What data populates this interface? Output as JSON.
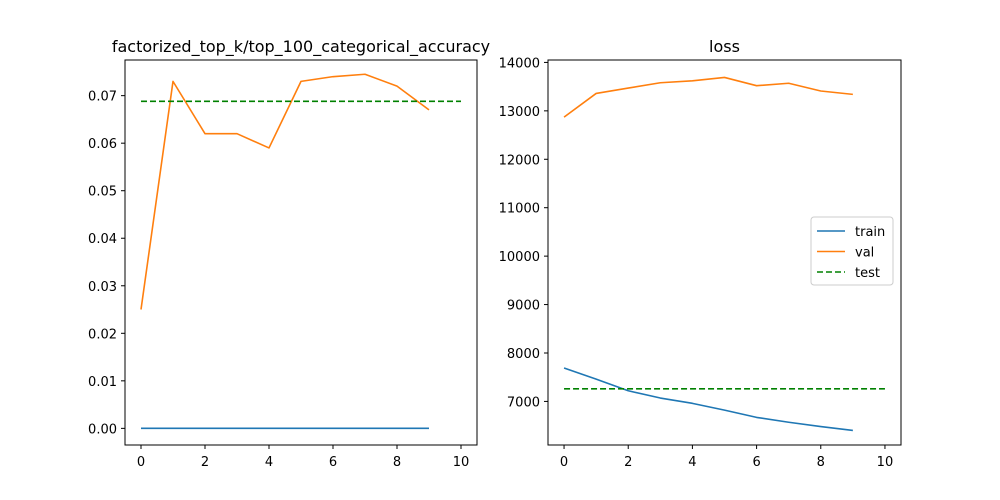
{
  "chart_data": [
    {
      "type": "line",
      "title": "factorized_top_k/top_100_categorical_accuracy",
      "xlabel": "",
      "ylabel": "",
      "xlim": [
        -0.5,
        10.5
      ],
      "ylim": [
        -0.0035,
        0.0775
      ],
      "xticks": [
        0,
        2,
        4,
        6,
        8,
        10
      ],
      "xtick_labels": [
        "0",
        "2",
        "4",
        "6",
        "8",
        "10"
      ],
      "yticks": [
        0.0,
        0.01,
        0.02,
        0.03,
        0.04,
        0.05,
        0.06,
        0.07
      ],
      "ytick_labels": [
        "0.00",
        "0.01",
        "0.02",
        "0.03",
        "0.04",
        "0.05",
        "0.06",
        "0.07"
      ],
      "grid": false,
      "series": [
        {
          "name": "train",
          "color": "#1f77b4",
          "dash": "solid",
          "x": [
            0,
            1,
            2,
            3,
            4,
            5,
            6,
            7,
            8,
            9
          ],
          "y": [
            0,
            0,
            0,
            0,
            0,
            0,
            0,
            0,
            0,
            0
          ]
        },
        {
          "name": "val",
          "color": "#ff7f0e",
          "dash": "solid",
          "x": [
            0,
            1,
            2,
            3,
            4,
            5,
            6,
            7,
            8,
            9
          ],
          "y": [
            0.025,
            0.073,
            0.062,
            0.062,
            0.059,
            0.073,
            0.074,
            0.0745,
            0.072,
            0.067
          ]
        },
        {
          "name": "test",
          "color": "#008000",
          "dash": "dashed",
          "x": [
            0,
            10
          ],
          "y": [
            0.0688,
            0.0688
          ]
        }
      ]
    },
    {
      "type": "line",
      "title": "loss",
      "xlabel": "",
      "ylabel": "",
      "xlim": [
        -0.5,
        10.5
      ],
      "ylim": [
        6100,
        14050
      ],
      "xticks": [
        0,
        2,
        4,
        6,
        8,
        10
      ],
      "xtick_labels": [
        "0",
        "2",
        "4",
        "6",
        "8",
        "10"
      ],
      "yticks": [
        7000,
        8000,
        9000,
        10000,
        11000,
        12000,
        13000,
        14000
      ],
      "ytick_labels": [
        "7000",
        "8000",
        "9000",
        "10000",
        "11000",
        "12000",
        "13000",
        "14000"
      ],
      "grid": false,
      "legend": {
        "position": "center-right",
        "entries": [
          {
            "label": "train",
            "color": "#1f77b4",
            "dash": "solid"
          },
          {
            "label": "val",
            "color": "#ff7f0e",
            "dash": "solid"
          },
          {
            "label": "test",
            "color": "#008000",
            "dash": "dashed"
          }
        ]
      },
      "series": [
        {
          "name": "train",
          "color": "#1f77b4",
          "dash": "solid",
          "x": [
            0,
            1,
            2,
            3,
            4,
            5,
            6,
            7,
            8,
            9
          ],
          "y": [
            7690,
            7460,
            7220,
            7070,
            6960,
            6820,
            6670,
            6570,
            6480,
            6400
          ]
        },
        {
          "name": "val",
          "color": "#ff7f0e",
          "dash": "solid",
          "x": [
            0,
            1,
            2,
            3,
            4,
            5,
            6,
            7,
            8,
            9
          ],
          "y": [
            12870,
            13360,
            13470,
            13580,
            13620,
            13690,
            13520,
            13570,
            13410,
            13340
          ]
        },
        {
          "name": "test",
          "color": "#008000",
          "dash": "dashed",
          "x": [
            0,
            10
          ],
          "y": [
            7260,
            7260
          ]
        }
      ]
    }
  ]
}
